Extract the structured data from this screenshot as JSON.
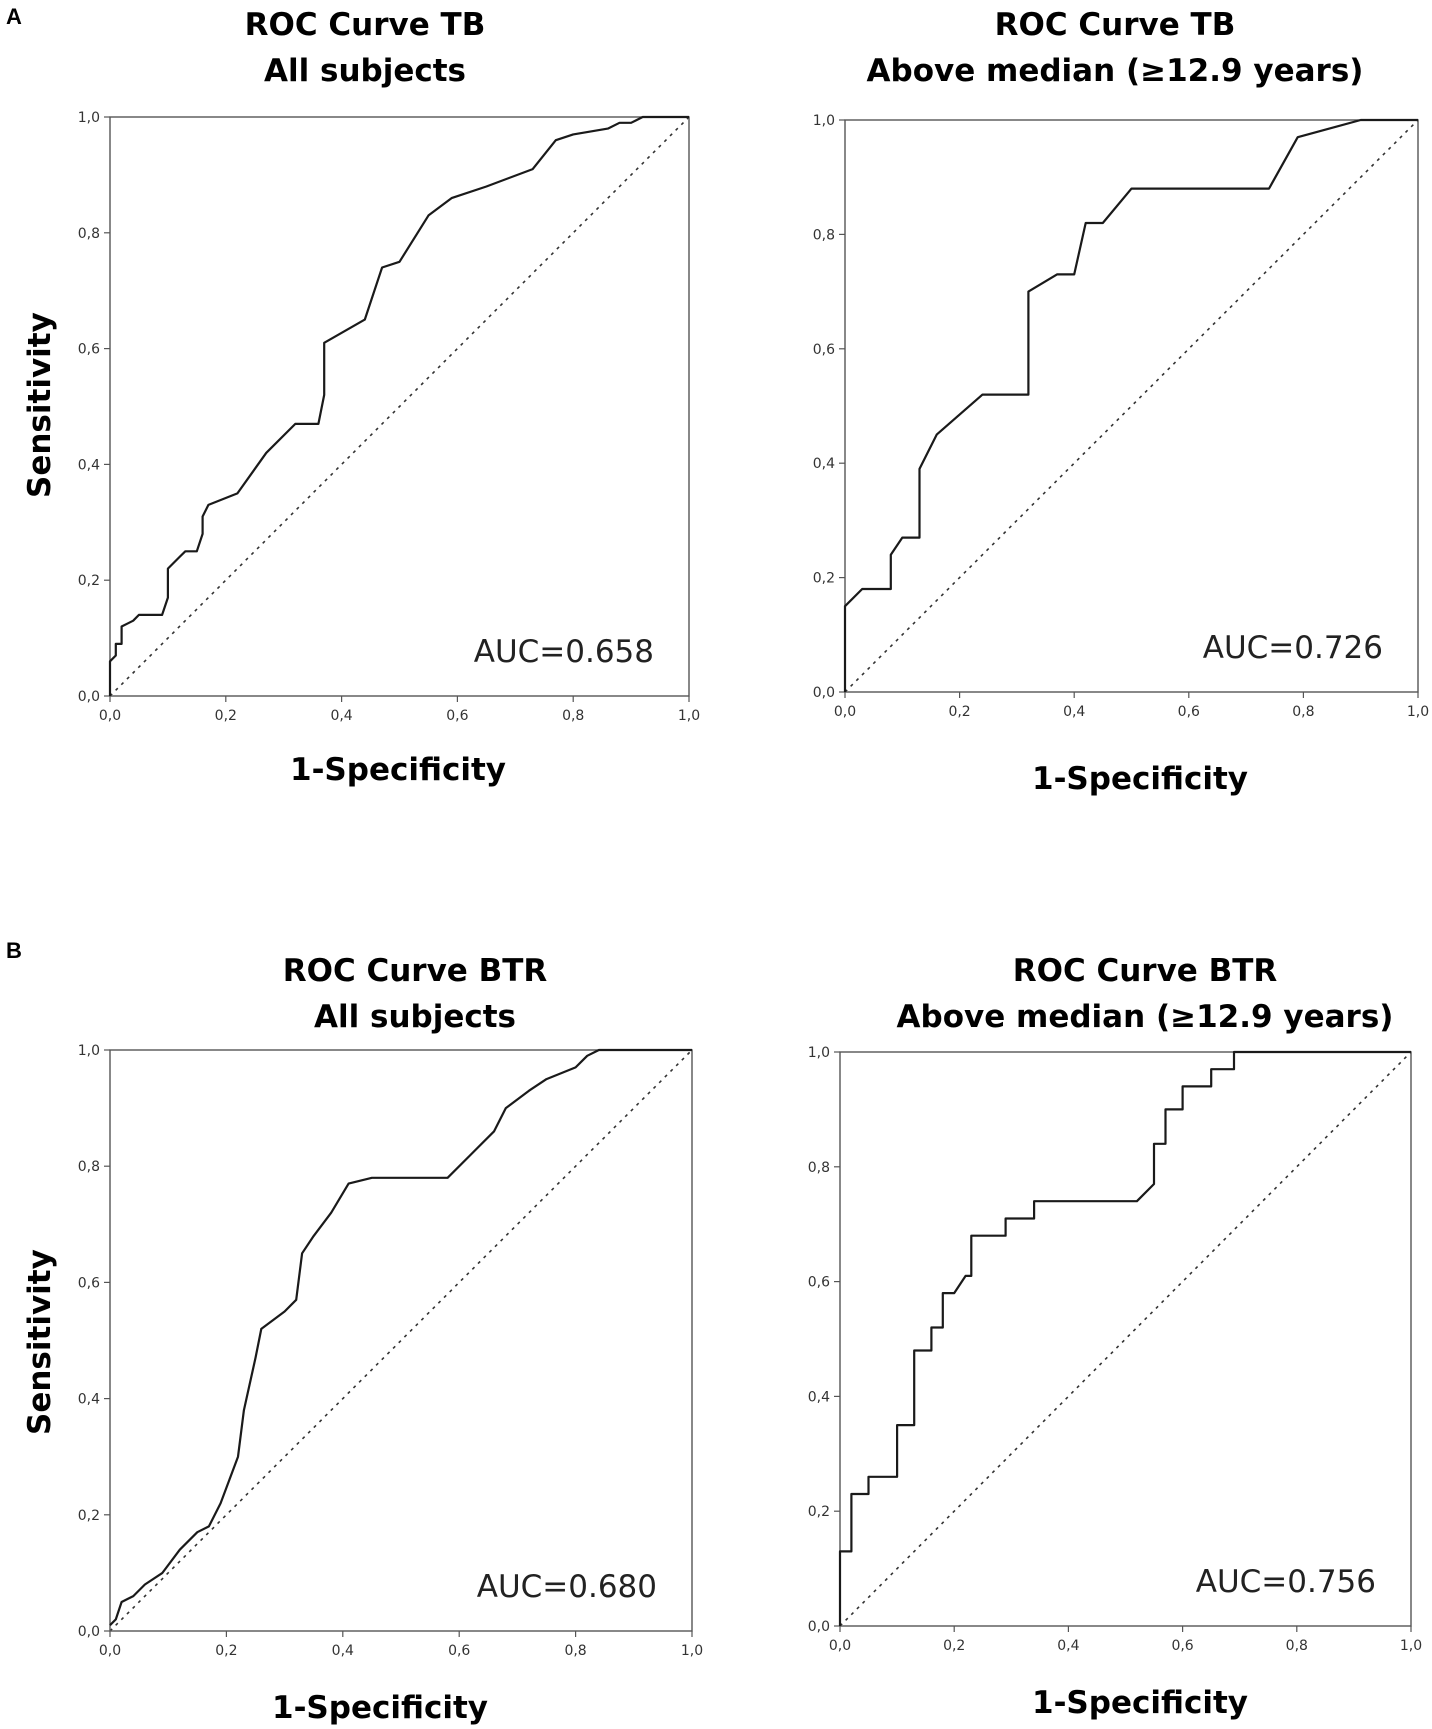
{
  "panel_labels": [
    "A",
    "B"
  ],
  "chart_data": [
    {
      "type": "line",
      "title": "ROC Curve TB",
      "subtitle": "All subjects",
      "xlabel": "1-Specificity",
      "ylabel": "Sensitivity",
      "xlim": [
        0,
        1
      ],
      "ylim": [
        0,
        1
      ],
      "xticks": [
        "0,0",
        "0,2",
        "0,4",
        "0,6",
        "0,8",
        "1,0"
      ],
      "yticks": [
        "0,0",
        "0,2",
        "0,4",
        "0,6",
        "0,8",
        "1,0"
      ],
      "annotation": "AUC=0.658",
      "auc": 0.658,
      "reference_line": "diagonal",
      "x": [
        0.0,
        0.0,
        0.01,
        0.01,
        0.02,
        0.02,
        0.04,
        0.05,
        0.09,
        0.1,
        0.1,
        0.12,
        0.13,
        0.15,
        0.16,
        0.16,
        0.17,
        0.22,
        0.27,
        0.32,
        0.36,
        0.37,
        0.37,
        0.44,
        0.47,
        0.5,
        0.55,
        0.59,
        0.65,
        0.73,
        0.77,
        0.8,
        0.86,
        0.88,
        0.9,
        0.92,
        0.92,
        1.0
      ],
      "y": [
        0.0,
        0.06,
        0.07,
        0.09,
        0.09,
        0.12,
        0.13,
        0.14,
        0.14,
        0.17,
        0.22,
        0.24,
        0.25,
        0.25,
        0.28,
        0.31,
        0.33,
        0.35,
        0.42,
        0.47,
        0.47,
        0.52,
        0.61,
        0.65,
        0.74,
        0.75,
        0.83,
        0.86,
        0.88,
        0.91,
        0.96,
        0.97,
        0.98,
        0.99,
        0.99,
        1.0,
        1.0,
        1.0
      ]
    },
    {
      "type": "line",
      "title": "ROC Curve TB",
      "subtitle": "Above median (≥12.9 years)",
      "xlabel": "1-Specificity",
      "ylabel": "",
      "xlim": [
        0,
        1
      ],
      "ylim": [
        0,
        1
      ],
      "xticks": [
        "0,0",
        "0,2",
        "0,4",
        "0,6",
        "0,8",
        "1,0"
      ],
      "yticks": [
        "0,0",
        "0,2",
        "0,4",
        "0,6",
        "0,8",
        "1,0"
      ],
      "annotation": "AUC=0.726",
      "auc": 0.726,
      "reference_line": "diagonal",
      "x": [
        0.0,
        0.0,
        0.03,
        0.08,
        0.08,
        0.1,
        0.13,
        0.13,
        0.16,
        0.24,
        0.32,
        0.32,
        0.37,
        0.4,
        0.42,
        0.45,
        0.5,
        0.74,
        0.79,
        0.9,
        1.0
      ],
      "y": [
        0.0,
        0.15,
        0.18,
        0.18,
        0.24,
        0.27,
        0.27,
        0.39,
        0.45,
        0.52,
        0.52,
        0.7,
        0.73,
        0.73,
        0.82,
        0.82,
        0.88,
        0.88,
        0.97,
        1.0,
        1.0
      ]
    },
    {
      "type": "line",
      "title": "ROC Curve BTR",
      "subtitle": "All subjects",
      "xlabel": "1-Specificity",
      "ylabel": "Sensitivity",
      "xlim": [
        0,
        1
      ],
      "ylim": [
        0,
        1
      ],
      "xticks": [
        "0,0",
        "0,2",
        "0,4",
        "0,6",
        "0,8",
        "1,0"
      ],
      "yticks": [
        "0,0",
        "0,2",
        "0,4",
        "0,6",
        "0,8",
        "1,0"
      ],
      "annotation": "AUC=0.680",
      "auc": 0.68,
      "reference_line": "diagonal",
      "x": [
        0.0,
        0.01,
        0.02,
        0.04,
        0.06,
        0.09,
        0.12,
        0.15,
        0.17,
        0.19,
        0.22,
        0.23,
        0.25,
        0.26,
        0.3,
        0.32,
        0.33,
        0.35,
        0.38,
        0.41,
        0.45,
        0.58,
        0.62,
        0.66,
        0.68,
        0.72,
        0.75,
        0.8,
        0.82,
        0.84,
        1.0
      ],
      "y": [
        0.01,
        0.02,
        0.05,
        0.06,
        0.08,
        0.1,
        0.14,
        0.17,
        0.18,
        0.22,
        0.3,
        0.38,
        0.47,
        0.52,
        0.55,
        0.57,
        0.65,
        0.68,
        0.72,
        0.77,
        0.78,
        0.78,
        0.82,
        0.86,
        0.9,
        0.93,
        0.95,
        0.97,
        0.99,
        1.0,
        1.0
      ]
    },
    {
      "type": "line",
      "title": "ROC Curve BTR",
      "subtitle": "Above median (≥12.9 years)",
      "xlabel": "1-Specificity",
      "ylabel": "",
      "xlim": [
        0,
        1
      ],
      "ylim": [
        0,
        1
      ],
      "xticks": [
        "0,0",
        "0,2",
        "0,4",
        "0,6",
        "0,8",
        "1,0"
      ],
      "yticks": [
        "0,0",
        "0,2",
        "0,4",
        "0,6",
        "0,8",
        "1,0"
      ],
      "annotation": "AUC=0.756",
      "auc": 0.756,
      "reference_line": "diagonal",
      "x": [
        0.0,
        0.0,
        0.02,
        0.02,
        0.05,
        0.05,
        0.1,
        0.1,
        0.13,
        0.13,
        0.16,
        0.16,
        0.18,
        0.18,
        0.2,
        0.22,
        0.23,
        0.23,
        0.29,
        0.29,
        0.34,
        0.34,
        0.52,
        0.55,
        0.55,
        0.57,
        0.57,
        0.6,
        0.6,
        0.65,
        0.65,
        0.69,
        0.69,
        1.0
      ],
      "y": [
        0.0,
        0.13,
        0.13,
        0.23,
        0.23,
        0.26,
        0.26,
        0.35,
        0.35,
        0.48,
        0.48,
        0.52,
        0.52,
        0.58,
        0.58,
        0.61,
        0.61,
        0.68,
        0.68,
        0.71,
        0.71,
        0.74,
        0.74,
        0.77,
        0.84,
        0.84,
        0.9,
        0.9,
        0.94,
        0.94,
        0.97,
        0.97,
        1.0,
        1.0
      ]
    }
  ]
}
